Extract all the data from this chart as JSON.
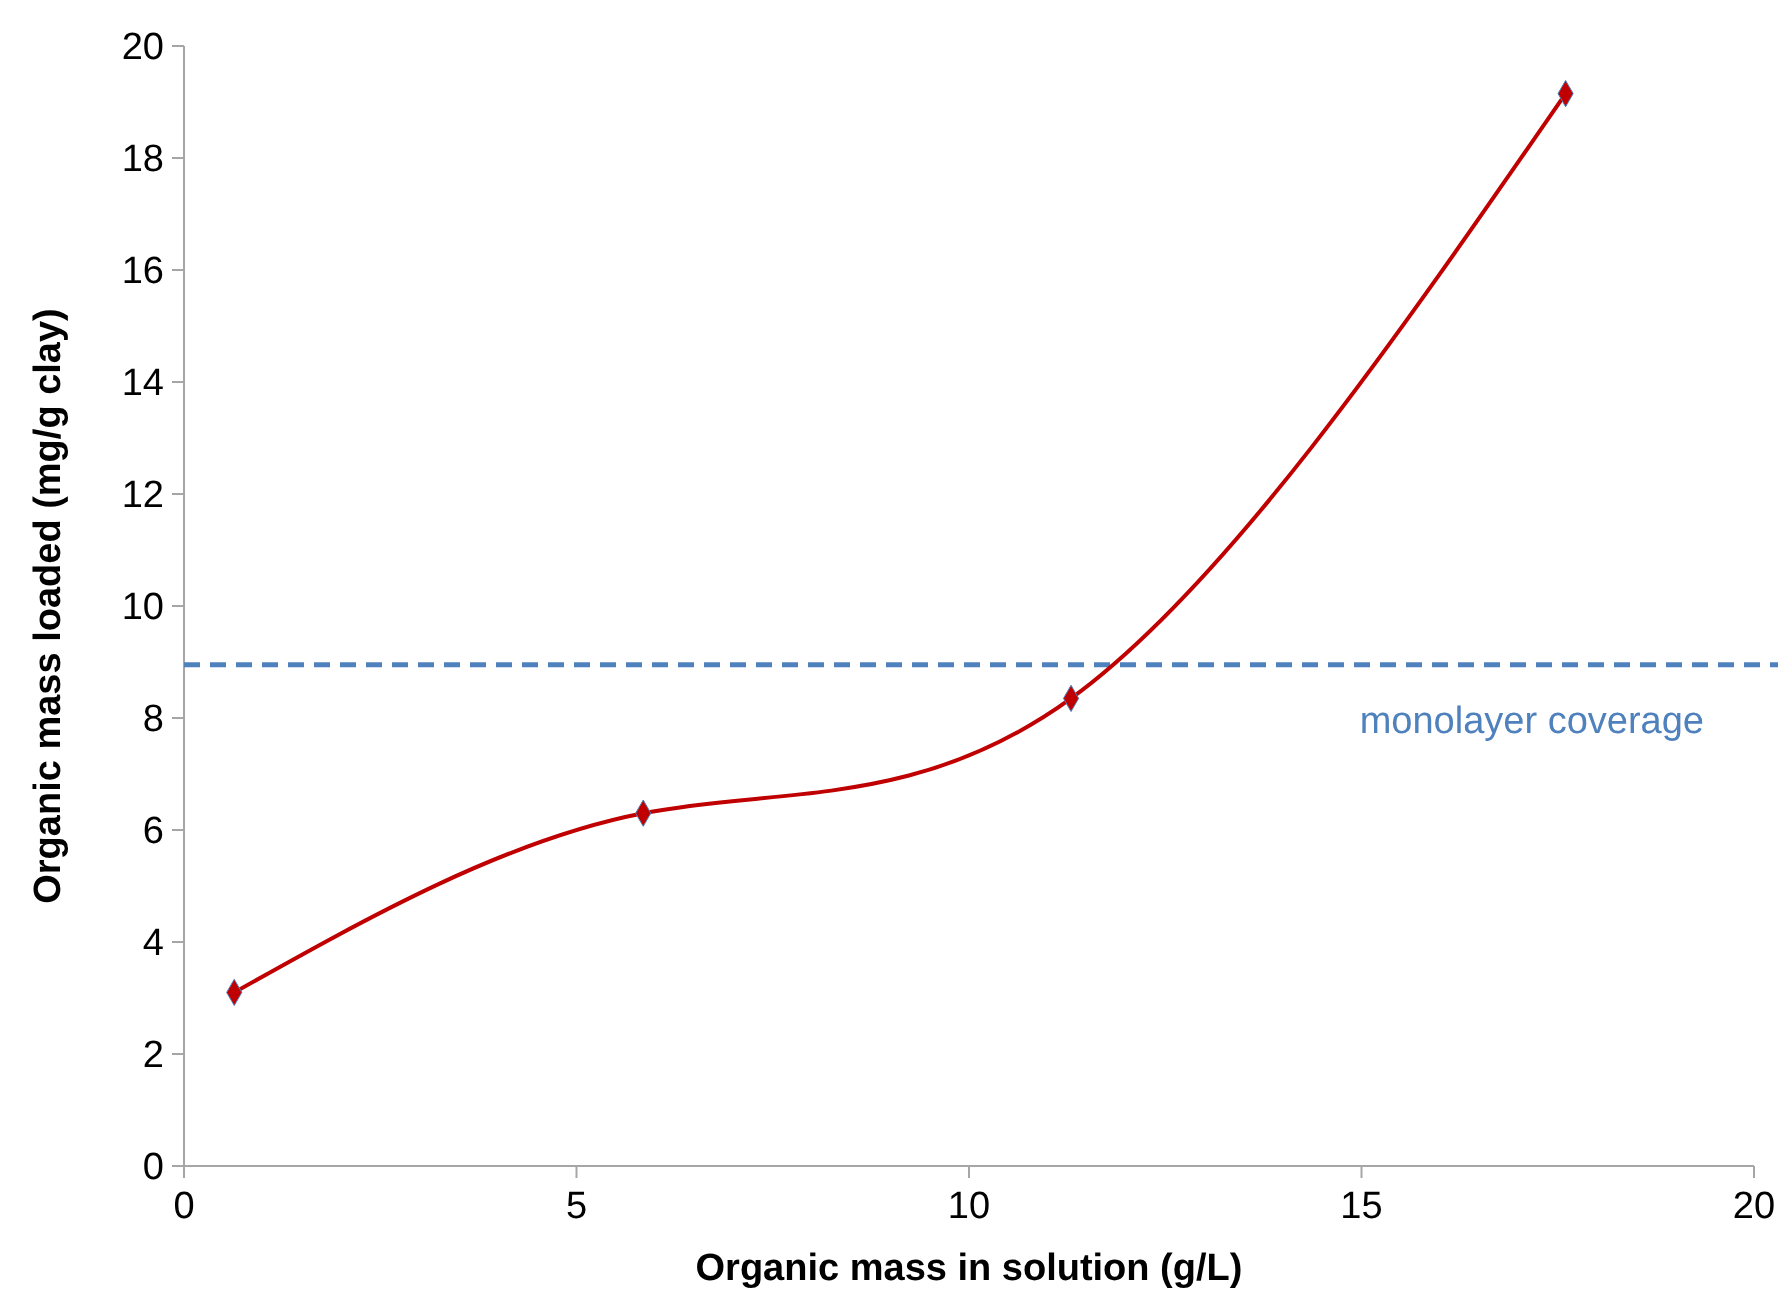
{
  "chart_data": {
    "type": "line",
    "xlabel": "Organic mass in solution (g/L)",
    "ylabel": "Organic mass loaded (mg/g clay)",
    "x": [
      0.64,
      5.85,
      11.3,
      17.6
    ],
    "series": [
      {
        "color": "#c00000",
        "values": [
          3.1,
          6.3,
          8.35,
          19.15
        ]
      }
    ],
    "xlim": [
      0,
      20
    ],
    "xticks": [
      0,
      5,
      10,
      15,
      20
    ],
    "ylim": [
      0,
      20
    ],
    "yticks": [
      0,
      2,
      4,
      6,
      8,
      10,
      12,
      14,
      16,
      18,
      20
    ],
    "grid": false,
    "marker": "diamond",
    "line_style": "solid",
    "ref_lines": [
      {
        "axis": "y",
        "value": 8.95,
        "label": "monolayer coverage",
        "color": "#4f81bd",
        "line_style": "dashed"
      }
    ]
  }
}
